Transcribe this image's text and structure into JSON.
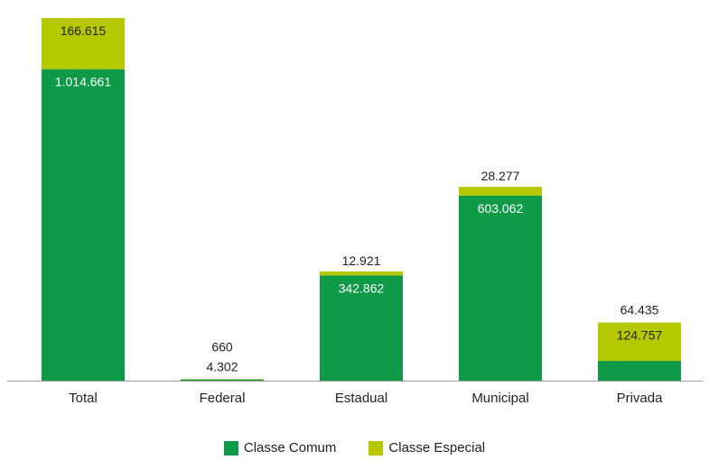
{
  "chart_data": {
    "type": "bar",
    "stacked": true,
    "categories": [
      "Total",
      "Federal",
      "Estadual",
      "Municipal",
      "Privada"
    ],
    "series": [
      {
        "name": "Classe Comum",
        "color": "#0f9a47",
        "values": [
          1014661,
          4302,
          342862,
          603062,
          64435
        ],
        "labels": [
          "1.014.661",
          "4.302",
          "342.862",
          "603.062",
          "64.435"
        ]
      },
      {
        "name": "Classe Especial",
        "color": "#b5c800",
        "values": [
          166615,
          660,
          12921,
          28277,
          124757
        ],
        "labels": [
          "166.615",
          "660",
          "12.921",
          "28.277",
          "124.757"
        ]
      }
    ],
    "title": "",
    "xlabel": "",
    "ylabel": "",
    "ylim": [
      0,
      1181276
    ],
    "grid": false,
    "legend": "bottom"
  }
}
